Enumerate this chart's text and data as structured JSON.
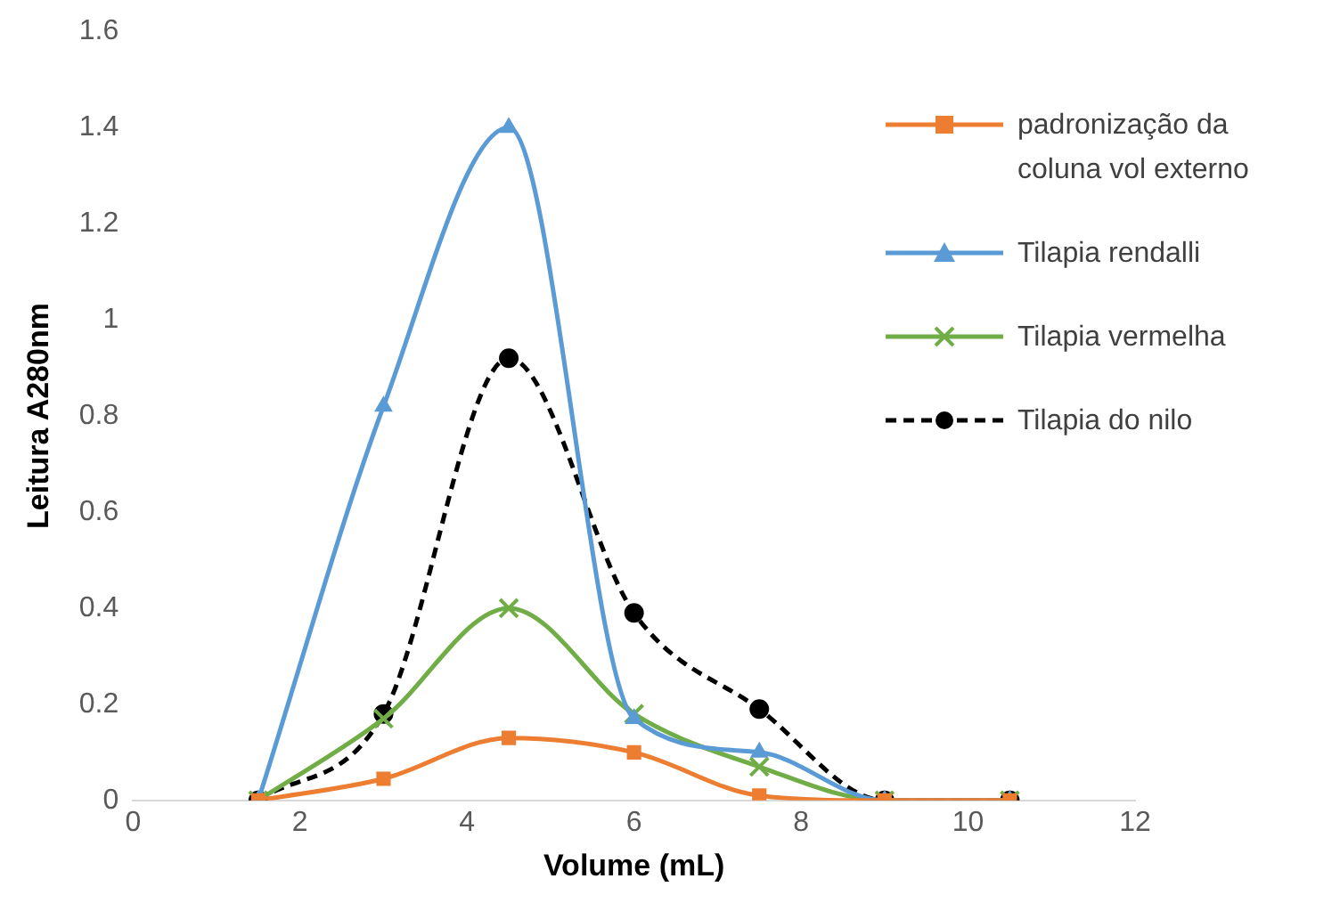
{
  "chart_data": {
    "type": "line",
    "xlabel": "Volume (mL)",
    "ylabel": "Leitura A280nm",
    "x": [
      1.5,
      3,
      4.5,
      6,
      7.5,
      9,
      10.5
    ],
    "series": [
      {
        "name": "padronização da coluna vol externo",
        "color": "#ed7d31",
        "marker": "square",
        "values": [
          0,
          0.045,
          0.13,
          0.1,
          0.01,
          0,
          0
        ]
      },
      {
        "name": "Tilapia rendalli",
        "color": "#5b9bd5",
        "marker": "triangle",
        "values": [
          0,
          0.82,
          1.4,
          0.17,
          0.1,
          0,
          0
        ]
      },
      {
        "name": "Tilapia vermelha",
        "color": "#70ad47",
        "marker": "cross",
        "values": [
          0,
          0.17,
          0.4,
          0.18,
          0.07,
          0,
          0
        ]
      },
      {
        "name": "Tilapia do nilo",
        "color": "#000000",
        "marker": "circle",
        "line_style": "dashed",
        "values": [
          0,
          0.18,
          0.92,
          0.39,
          0.19,
          0,
          0
        ]
      }
    ],
    "xlim": [
      0,
      12
    ],
    "xticks": [
      0,
      2,
      4,
      6,
      8,
      10,
      12
    ],
    "ylim": [
      0,
      1.6
    ],
    "yticks": [
      0,
      0.2,
      0.4,
      0.6,
      0.8,
      1,
      1.2,
      1.4,
      1.6
    ],
    "grid": false,
    "legend": "right"
  }
}
